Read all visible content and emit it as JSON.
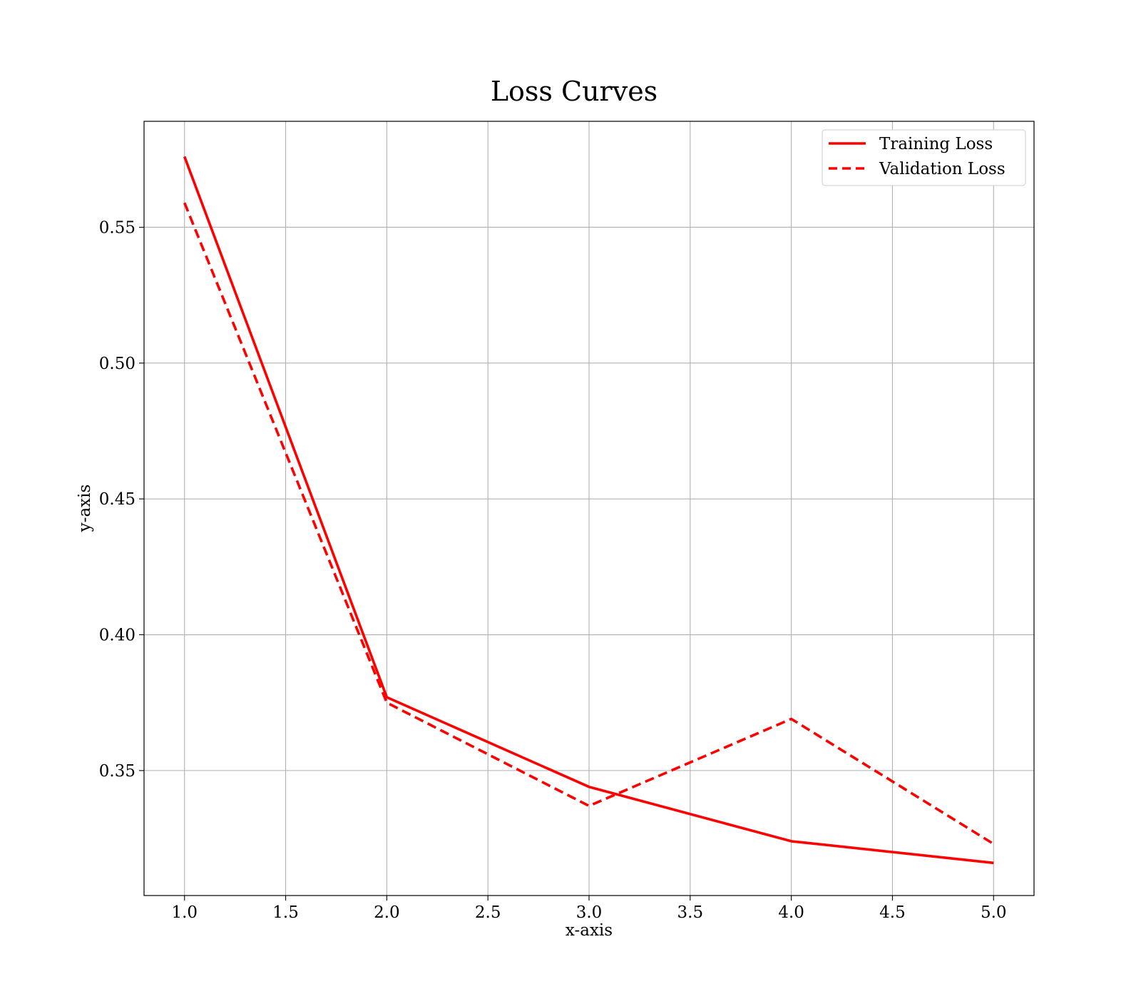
{
  "chart_data": {
    "type": "line",
    "title": "Loss Curves",
    "xlabel": "x-axis",
    "ylabel": "y-axis",
    "xlim": [
      0.8,
      5.2
    ],
    "ylim": [
      0.304,
      0.589
    ],
    "x_ticks": [
      1.0,
      1.5,
      2.0,
      2.5,
      3.0,
      3.5,
      4.0,
      4.5,
      5.0
    ],
    "x_tick_labels": [
      "1.0",
      "1.5",
      "2.0",
      "2.5",
      "3.0",
      "3.5",
      "4.0",
      "4.5",
      "5.0"
    ],
    "y_ticks": [
      0.35,
      0.4,
      0.45,
      0.5,
      0.55
    ],
    "y_tick_labels": [
      "0.35",
      "0.40",
      "0.45",
      "0.50",
      "0.55"
    ],
    "grid": true,
    "legend": {
      "position": "top-right"
    },
    "x": [
      1,
      2,
      3,
      4,
      5
    ],
    "series": [
      {
        "name": "Training Loss",
        "values": [
          0.576,
          0.377,
          0.344,
          0.324,
          0.316
        ],
        "color": "#ff0000",
        "style": "solid"
      },
      {
        "name": "Validation Loss",
        "values": [
          0.559,
          0.375,
          0.337,
          0.369,
          0.323
        ],
        "color": "#ff0000",
        "style": "dashed"
      }
    ],
    "grid_color": "#b0b0b0",
    "axis_color": "#000000"
  }
}
